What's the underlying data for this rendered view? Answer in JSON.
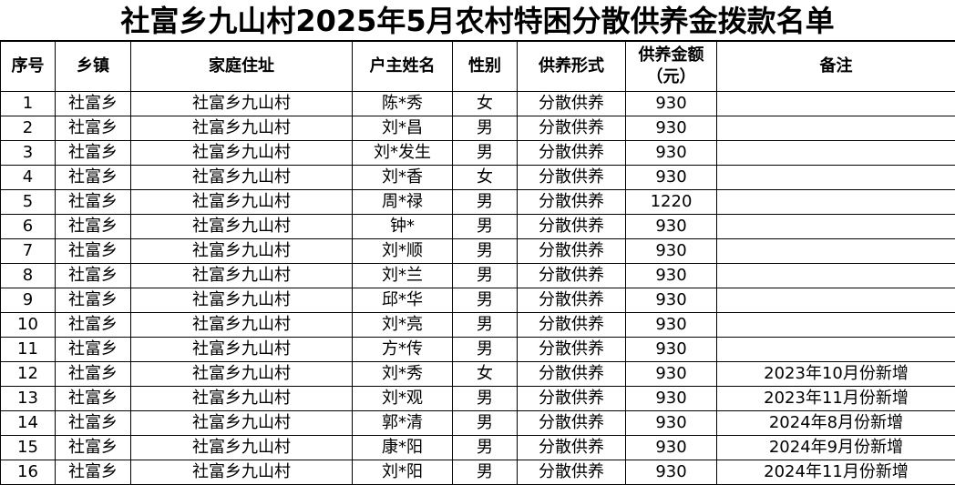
{
  "title": "社富乡九山村2025年5月农村特困分散供养金拨款名单",
  "headers": [
    "序号",
    "乡镇",
    "家庭住址",
    "户主姓名",
    "性别",
    "供养形式",
    "供养金额\n（元）",
    "备注"
  ],
  "rows": [
    [
      "1",
      "社富乡",
      "社富乡九山村",
      "陈*秀",
      "女",
      "分散供养",
      "930",
      ""
    ],
    [
      "2",
      "社富乡",
      "社富乡九山村",
      "刘*昌",
      "男",
      "分散供养",
      "930",
      ""
    ],
    [
      "3",
      "社富乡",
      "社富乡九山村",
      "刘*发生",
      "男",
      "分散供养",
      "930",
      ""
    ],
    [
      "4",
      "社富乡",
      "社富乡九山村",
      "刘*香",
      "女",
      "分散供养",
      "930",
      ""
    ],
    [
      "5",
      "社富乡",
      "社富乡九山村",
      "周*禄",
      "男",
      "分散供养",
      "1220",
      ""
    ],
    [
      "6",
      "社富乡",
      "社富乡九山村",
      "钟*",
      "男",
      "分散供养",
      "930",
      ""
    ],
    [
      "7",
      "社富乡",
      "社富乡九山村",
      "刘*顺",
      "男",
      "分散供养",
      "930",
      ""
    ],
    [
      "8",
      "社富乡",
      "社富乡九山村",
      "刘*兰",
      "男",
      "分散供养",
      "930",
      ""
    ],
    [
      "9",
      "社富乡",
      "社富乡九山村",
      "邱*华",
      "男",
      "分散供养",
      "930",
      ""
    ],
    [
      "10",
      "社富乡",
      "社富乡九山村",
      "刘*亮",
      "男",
      "分散供养",
      "930",
      ""
    ],
    [
      "11",
      "社富乡",
      "社富乡九山村",
      "方*传",
      "男",
      "分散供养",
      "930",
      ""
    ],
    [
      "12",
      "社富乡",
      "社富乡九山村",
      "刘*秀",
      "女",
      "分散供养",
      "930",
      "2023年10月份新增"
    ],
    [
      "13",
      "社富乡",
      "社富乡九山村",
      "刘*观",
      "男",
      "分散供养",
      "930",
      "2023年11月份新增"
    ],
    [
      "14",
      "社富乡",
      "社富乡九山村",
      "郭*清",
      "男",
      "分散供养",
      "930",
      "2024年8月份新增"
    ],
    [
      "15",
      "社富乡",
      "社富乡九山村",
      "康*阳",
      "男",
      "分散供养",
      "930",
      "2024年9月份新增"
    ],
    [
      "16",
      "社富乡",
      "社富乡九山村",
      "刘*阳",
      "男",
      "分散供养",
      "930",
      "2024年11月份新增"
    ]
  ]
}
